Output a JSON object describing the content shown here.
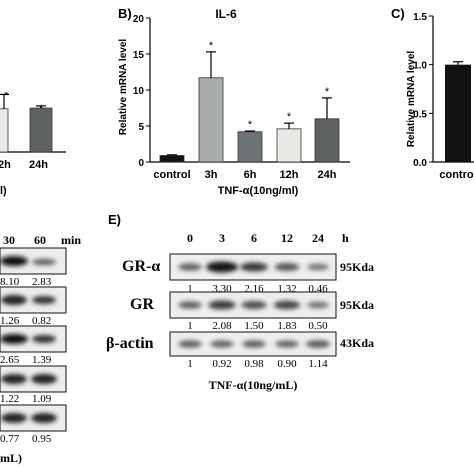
{
  "panels": {
    "b_label": "B)",
    "c_label": "C)",
    "e_label": "E)"
  },
  "panel_a_partial": {
    "tick_labels": [
      "2h",
      "24h"
    ],
    "star_marks": [
      "*",
      "*"
    ],
    "xlabel_fragment": "l)",
    "values": [
      6.0,
      6.1
    ],
    "errors": [
      2.0,
      0.3
    ]
  },
  "chart_data": [
    {
      "type": "bar",
      "title": "IL-6",
      "categories": [
        "control",
        "3h",
        "6h",
        "12h",
        "24h"
      ],
      "values": [
        0.9,
        11.7,
        4.2,
        4.6,
        6.0
      ],
      "errors": [
        0.1,
        3.6,
        0.1,
        0.8,
        2.9
      ],
      "significance": [
        "",
        "*",
        "*",
        "*",
        "*"
      ],
      "bar_colors": [
        "#111111",
        "#a9acac",
        "#6d7475",
        "#e9eae6",
        "#5e6263"
      ],
      "xlabel": "TNF-α(10ng/ml)",
      "ylabel": "Relative mRNA level",
      "ylim": [
        0,
        20
      ],
      "yticks": [
        "0",
        "5",
        "10",
        "15",
        "20"
      ]
    },
    {
      "type": "bar",
      "title": "",
      "categories": [
        "control"
      ],
      "values": [
        1.0
      ],
      "errors": [
        0.03
      ],
      "bar_colors": [
        "#111111"
      ],
      "xlabel": "",
      "ylabel": "Relative mRNA level",
      "ylim": [
        0,
        1.5
      ],
      "yticks": [
        "0.0",
        "0.5",
        "1.0",
        "1.5"
      ]
    }
  ],
  "blot_d_partial": {
    "times": [
      "30",
      "60"
    ],
    "time_unit": "min",
    "rows": [
      [
        "8.10",
        "2.83"
      ],
      [
        "1.26",
        "0.82"
      ],
      [
        "2.65",
        "1.39"
      ],
      [
        "1.22",
        "1.09"
      ],
      [
        "0.77",
        "0.95"
      ]
    ],
    "footer_fragment": "mL)"
  },
  "blot_e": {
    "times": [
      "0",
      "3",
      "6",
      "12",
      "24"
    ],
    "time_unit": "h",
    "rows": [
      {
        "label": "GR-α",
        "size": "95Kda",
        "values": [
          "1",
          "3.30",
          "2.16",
          "1.32",
          "0.46"
        ]
      },
      {
        "label": "GR",
        "size": "95Kda",
        "values": [
          "1",
          "2.08",
          "1.50",
          "1.83",
          "0.50"
        ]
      },
      {
        "label": "β-actin",
        "size": "43Kda",
        "values": [
          "1",
          "0.92",
          "0.98",
          "0.90",
          "1.14"
        ]
      }
    ],
    "xlabel": "TNF-α(10ng/mL)"
  }
}
